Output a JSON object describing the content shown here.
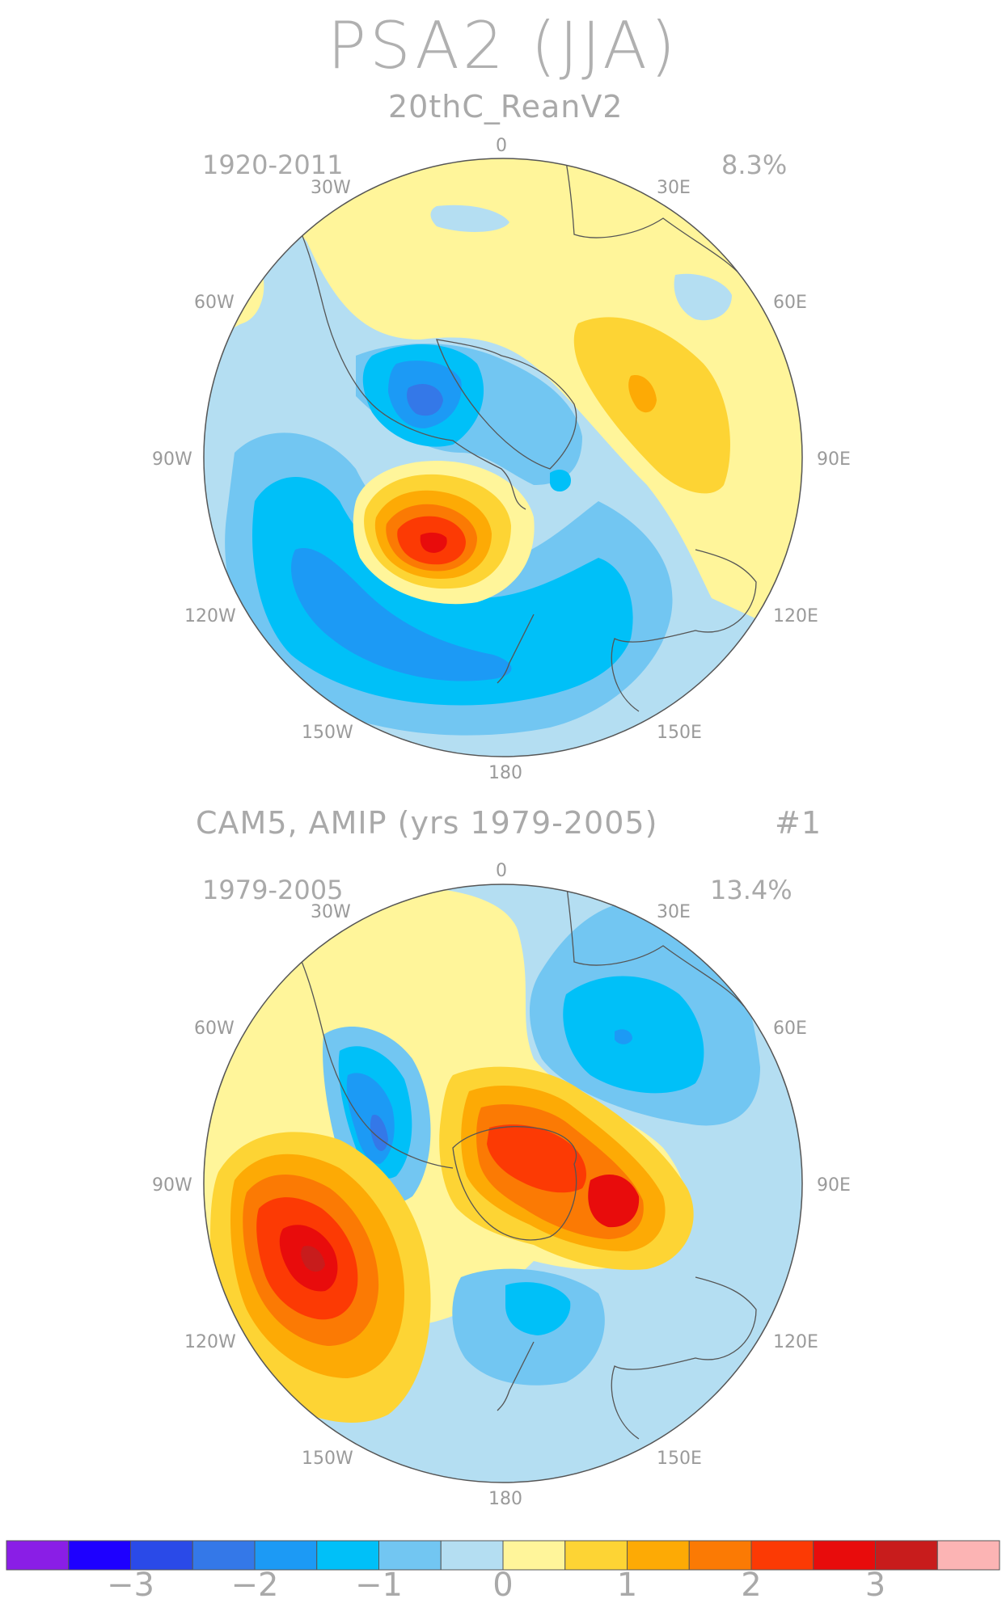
{
  "title": "PSA2 (JJA)",
  "panels": [
    {
      "subtitle": "20thC_ReanV2",
      "subtitle_right": "",
      "period": "1920-2011",
      "variance": "8.3%",
      "lon_labels": {
        "n": "0",
        "ne1": "30E",
        "ne2": "60E",
        "e": "90E",
        "se1": "120E",
        "se2": "150E",
        "s": "180",
        "sw2": "150W",
        "sw1": "120W",
        "w": "90W",
        "nw2": "60W",
        "nw1": "30W"
      }
    },
    {
      "subtitle": "CAM5, AMIP (yrs 1979-2005)",
      "subtitle_right": "#1",
      "period": "1979-2005",
      "variance": "13.4%",
      "lon_labels": {
        "n": "0",
        "ne1": "30E",
        "ne2": "60E",
        "e": "90E",
        "se1": "120E",
        "se2": "150E",
        "s": "180",
        "sw2": "150W",
        "sw1": "120W",
        "w": "90W",
        "nw2": "60W",
        "nw1": "30W"
      }
    }
  ],
  "colorbar": {
    "colors": [
      "#8a1ee6",
      "#1e00ff",
      "#2a4ae8",
      "#3478e8",
      "#1c9af5",
      "#00c0f8",
      "#72c6f2",
      "#b4def2",
      "#fff59a",
      "#fdd434",
      "#fdaa05",
      "#fb7a04",
      "#fc3a04",
      "#e80c0c",
      "#c81c1c",
      "#fcb4b4"
    ],
    "ticks": [
      "-3",
      "-2",
      "-1",
      "0",
      "1",
      "2",
      "3"
    ],
    "tick_values": [
      -3,
      -2,
      -1,
      0,
      1,
      2,
      3
    ],
    "range": [
      -4,
      4
    ]
  }
}
